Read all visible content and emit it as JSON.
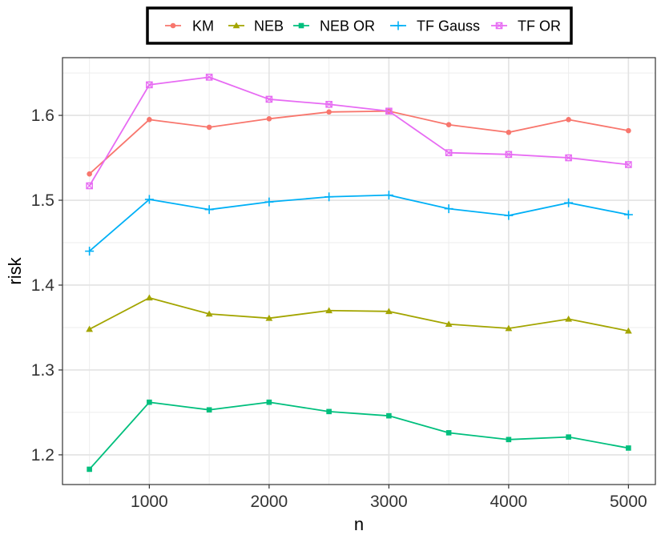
{
  "chart_data": {
    "type": "line",
    "xlabel": "n",
    "ylabel": "risk",
    "xlim": [
      275,
      5225
    ],
    "ylim": [
      1.165,
      1.668
    ],
    "x_ticks": [
      1000,
      2000,
      3000,
      4000,
      5000
    ],
    "x_tick_labels": [
      "1000",
      "2000",
      "3000",
      "4000",
      "5000"
    ],
    "y_ticks": [
      1.2,
      1.3,
      1.4,
      1.5,
      1.6
    ],
    "y_tick_labels": [
      "1.2",
      "1.3",
      "1.4",
      "1.5",
      "1.6"
    ],
    "grid": true,
    "legend_position": "top",
    "x": [
      500,
      1000,
      1500,
      2000,
      2500,
      3000,
      3500,
      4000,
      4500,
      5000
    ],
    "series": [
      {
        "name": "KM",
        "color": "#F8766D",
        "marker": "circle",
        "values": [
          1.531,
          1.595,
          1.586,
          1.596,
          1.604,
          1.605,
          1.589,
          1.58,
          1.595,
          1.582
        ]
      },
      {
        "name": "NEB",
        "color": "#A3A500",
        "marker": "triangle",
        "values": [
          1.348,
          1.385,
          1.366,
          1.361,
          1.37,
          1.369,
          1.354,
          1.349,
          1.36,
          1.346
        ]
      },
      {
        "name": "NEB OR",
        "color": "#00BF7D",
        "marker": "square",
        "values": [
          1.183,
          1.262,
          1.253,
          1.262,
          1.251,
          1.246,
          1.226,
          1.218,
          1.221,
          1.208
        ]
      },
      {
        "name": "TF Gauss",
        "color": "#00B0F6",
        "marker": "plus",
        "values": [
          1.44,
          1.501,
          1.489,
          1.498,
          1.504,
          1.506,
          1.49,
          1.482,
          1.497,
          1.483
        ]
      },
      {
        "name": "TF OR",
        "color": "#E76BF3",
        "marker": "boxed-x",
        "values": [
          1.517,
          1.636,
          1.645,
          1.619,
          1.613,
          1.605,
          1.556,
          1.554,
          1.55,
          1.542
        ]
      }
    ]
  }
}
